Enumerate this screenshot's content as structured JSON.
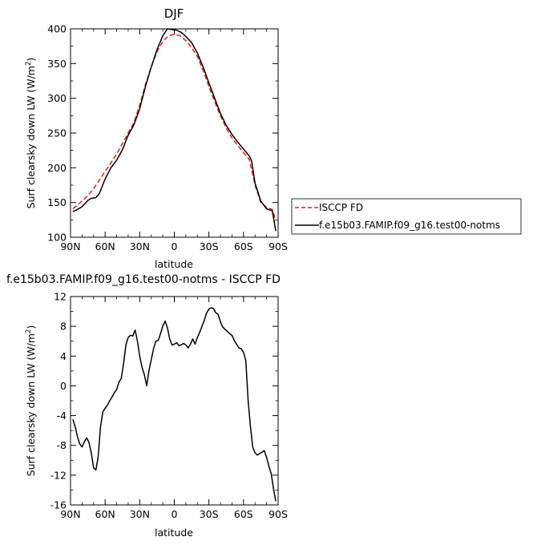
{
  "chart_data": [
    {
      "type": "line",
      "title": "DJF",
      "xlabel": "latitude",
      "ylabel": "Surf clearsky down LW (W/m",
      "ylabel_sup": "2",
      "ylabel_tail": ")",
      "xlim": [
        90,
        -90
      ],
      "ylim": [
        100,
        400
      ],
      "xticks": [
        90,
        60,
        30,
        0,
        -30,
        -60,
        -90
      ],
      "xtick_labels": [
        "90N",
        "60N",
        "30N",
        "0",
        "30S",
        "60S",
        "90S"
      ],
      "yticks": [
        100,
        150,
        200,
        250,
        300,
        350,
        400
      ],
      "ytick_labels": [
        "100",
        "150",
        "200",
        "250",
        "300",
        "350",
        "400"
      ],
      "legend_position": "right",
      "series": [
        {
          "name": "ISCCP FD",
          "color": "#e8211b",
          "dashed": true,
          "x": [
            88,
            85,
            80,
            75,
            70,
            65,
            60,
            55,
            50,
            45,
            40,
            35,
            30,
            25,
            20,
            15,
            10,
            5,
            0,
            -5,
            -10,
            -15,
            -20,
            -25,
            -30,
            -35,
            -40,
            -45,
            -50,
            -55,
            -60,
            -65,
            -70,
            -75,
            -80,
            -85,
            -88
          ],
          "y": [
            141,
            145,
            152,
            160,
            170,
            182,
            195,
            207,
            220,
            235,
            250,
            265,
            290,
            320,
            345,
            367,
            382,
            390,
            392,
            390,
            383,
            373,
            360,
            340,
            317,
            295,
            275,
            257,
            243,
            232,
            222,
            212,
            175,
            150,
            143,
            140,
            124
          ]
        },
        {
          "name": "f.e15b03.FAMIP.f09_g16.test00-notms",
          "color": "#000000",
          "dashed": false,
          "x": [
            88,
            85,
            80,
            75,
            72,
            68,
            65,
            60,
            55,
            50,
            45,
            40,
            35,
            30,
            25,
            20,
            15,
            10,
            6,
            2,
            -2,
            -6,
            -10,
            -15,
            -20,
            -25,
            -30,
            -35,
            -40,
            -45,
            -50,
            -55,
            -60,
            -65,
            -67,
            -70,
            -75,
            -80,
            -85,
            -88
          ],
          "y": [
            137,
            139,
            144,
            153,
            156,
            157,
            163,
            184,
            200,
            211,
            226,
            247,
            262,
            285,
            317,
            345,
            370,
            390,
            400,
            399,
            398,
            395,
            389,
            380,
            365,
            345,
            322,
            300,
            278,
            261,
            248,
            237,
            227,
            217,
            210,
            178,
            152,
            141,
            138,
            109
          ]
        }
      ]
    },
    {
      "type": "line",
      "title": "f.e15b03.FAMIP.f09_g16.test00-notms - ISCCP FD",
      "xlabel": "latitude",
      "ylabel": "Surf clearsky down LW (W/m",
      "ylabel_sup": "2",
      "ylabel_tail": ")",
      "xlim": [
        90,
        -90
      ],
      "ylim": [
        -16,
        12
      ],
      "xticks": [
        90,
        60,
        30,
        0,
        -30,
        -60,
        -90
      ],
      "xtick_labels": [
        "90N",
        "60N",
        "30N",
        "0",
        "30S",
        "60S",
        "90S"
      ],
      "yticks": [
        -16,
        -12,
        -8,
        -4,
        0,
        4,
        8,
        12
      ],
      "ytick_labels": [
        "-16",
        "-12",
        "-8",
        "-4",
        "0",
        "4",
        "8",
        "12"
      ],
      "series": [
        {
          "color": "#000000",
          "dashed": false,
          "x": [
            88,
            86,
            84,
            82,
            80,
            78,
            76,
            74,
            72,
            70,
            68,
            66,
            64,
            62,
            60,
            58,
            56,
            54,
            52,
            50,
            48,
            46,
            44,
            42,
            40,
            38,
            36,
            34,
            32,
            30,
            28,
            26,
            24,
            22,
            20,
            18,
            16,
            14,
            12,
            10,
            8,
            6,
            4,
            2,
            0,
            -2,
            -4,
            -6,
            -8,
            -10,
            -12,
            -14,
            -16,
            -18,
            -20,
            -22,
            -24,
            -26,
            -28,
            -30,
            -32,
            -34,
            -36,
            -38,
            -40,
            -42,
            -44,
            -46,
            -48,
            -50,
            -52,
            -54,
            -56,
            -58,
            -60,
            -62,
            -64,
            -66,
            -68,
            -70,
            -72,
            -74,
            -76,
            -78,
            -80,
            -82,
            -84,
            -86,
            -88
          ],
          "y": [
            -4.5,
            -5.5,
            -6.8,
            -7.8,
            -8.2,
            -7.5,
            -7,
            -7.6,
            -9,
            -11,
            -11.3,
            -9.5,
            -5.5,
            -3.5,
            -3,
            -2.6,
            -2,
            -1.5,
            -0.9,
            -0.5,
            0.5,
            1,
            3,
            5.5,
            6.5,
            6.8,
            6.7,
            7.5,
            6,
            4,
            2.5,
            1.5,
            0,
            2,
            3.5,
            5,
            6,
            6.1,
            7,
            8,
            8.7,
            7.8,
            6.3,
            5.5,
            5.6,
            5.8,
            5.4,
            5.5,
            5.7,
            5.5,
            5.1,
            5.6,
            6.3,
            5.6,
            6.5,
            7.2,
            8,
            8.8,
            9.8,
            10.3,
            10.5,
            10.4,
            9.8,
            9.6,
            8.6,
            7.9,
            7.6,
            7.3,
            7,
            6.8,
            6.1,
            5.6,
            5.1,
            5,
            4.5,
            3.4,
            -2,
            -5.5,
            -8.2,
            -9,
            -9.3,
            -9.1,
            -8.9,
            -8.7,
            -9.6,
            -10.8,
            -11.8,
            -13.8,
            -15.5
          ]
        }
      ]
    }
  ]
}
